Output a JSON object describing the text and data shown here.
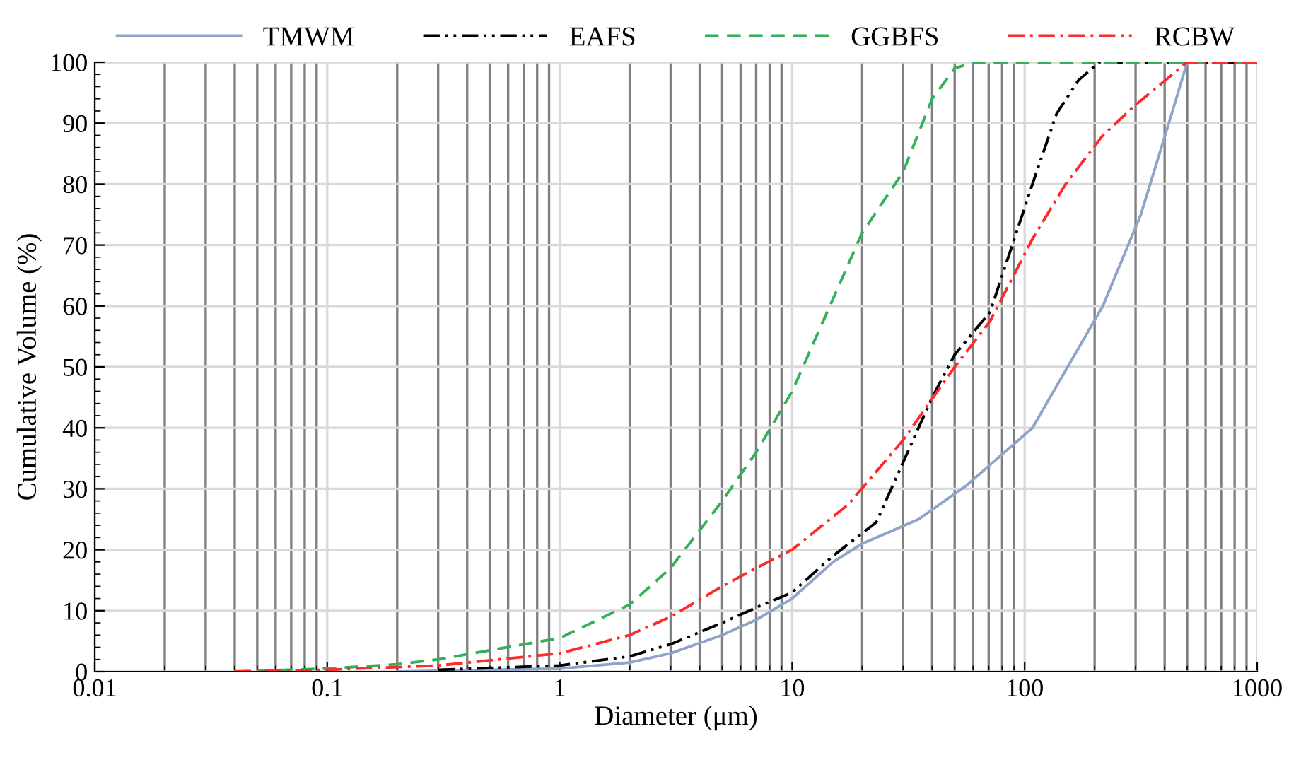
{
  "chart_data": {
    "type": "line",
    "xlabel": "Diameter (μm)",
    "ylabel": "Cumulative Volume (%)",
    "log": "x",
    "xlim": [
      0.01,
      1000
    ],
    "xticks": [
      0.01,
      0.1,
      1,
      10,
      100,
      1000
    ],
    "ylim": [
      0,
      100
    ],
    "yticks": [
      0,
      10,
      20,
      30,
      40,
      50,
      60,
      70,
      80,
      90,
      100
    ],
    "grid": true,
    "legend": "top",
    "marker": "none",
    "series": [
      {
        "name": "TMWM",
        "color": "#8ea4c8",
        "line_style": "solid",
        "x": [
          0.2,
          1,
          2,
          3,
          5,
          7,
          10,
          15,
          20,
          35,
          56,
          108,
          217,
          316,
          417,
          500
        ],
        "values": [
          0,
          0.5,
          1.5,
          3,
          6,
          8.5,
          12,
          18,
          21,
          25,
          30.5,
          40,
          60,
          75,
          90,
          100
        ]
      },
      {
        "name": "EAFS",
        "color": "#000000",
        "line_style": "dashdotdot",
        "x": [
          0.3,
          1,
          2,
          3,
          5,
          7,
          10,
          15,
          23,
          40,
          50,
          71,
          108,
          137,
          170,
          209,
          1000
        ],
        "values": [
          0.3,
          1,
          2.5,
          4.5,
          8,
          10.5,
          13,
          19,
          24.5,
          45,
          52,
          59,
          80,
          91.5,
          97,
          100,
          100
        ]
      },
      {
        "name": "GGBFS",
        "color": "#33b05a",
        "line_style": "dashed",
        "x": [
          0.04,
          0.1,
          0.2,
          0.3,
          0.5,
          1,
          2,
          3,
          5,
          7,
          10,
          20,
          30,
          40,
          50,
          60,
          1000
        ],
        "values": [
          0,
          0.5,
          1.2,
          2,
          3.5,
          5.5,
          11,
          17,
          28,
          36,
          46,
          72,
          82,
          94,
          99,
          100,
          100
        ]
      },
      {
        "name": "RCBW",
        "color": "#ff2a2a",
        "line_style": "dashdot",
        "x": [
          0.04,
          0.1,
          0.3,
          1,
          2,
          3,
          5,
          7,
          10,
          17.5,
          30,
          50,
          71,
          108,
          150,
          217,
          300,
          500,
          1000
        ],
        "values": [
          0,
          0.3,
          1,
          3,
          6,
          9,
          14,
          17,
          20,
          27.5,
          38,
          50,
          57.5,
          71,
          80,
          88,
          93,
          100,
          100
        ]
      }
    ]
  }
}
